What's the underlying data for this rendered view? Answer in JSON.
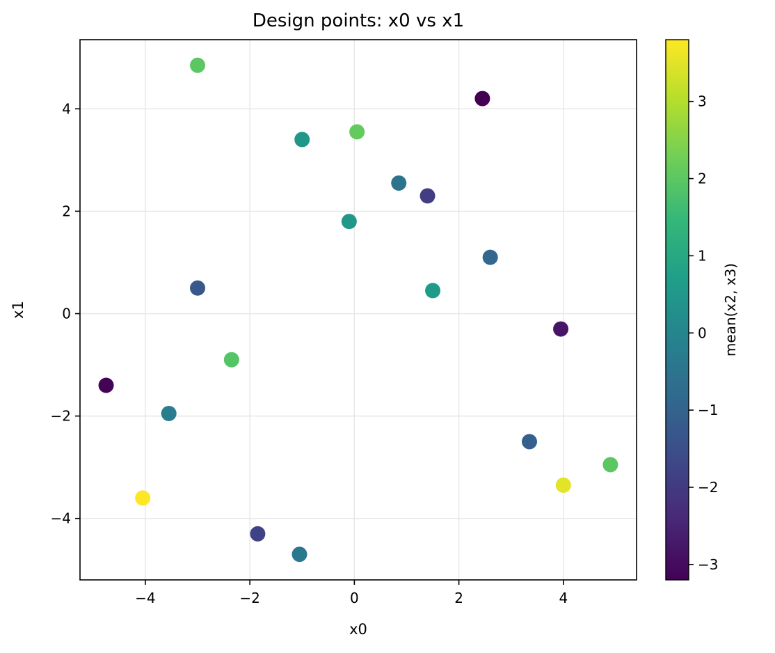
{
  "chart_data": {
    "type": "scatter",
    "title": "Design points: x0 vs x1",
    "xlabel": "x0",
    "ylabel": "x1",
    "xlim": [
      -5.25,
      5.4
    ],
    "ylim": [
      -5.2,
      5.35
    ],
    "xticks": [
      -4,
      -2,
      0,
      2,
      4
    ],
    "yticks": [
      -4,
      -2,
      0,
      2,
      4
    ],
    "grid": true,
    "legend": "none",
    "points": [
      {
        "x0": -3.0,
        "x1": 4.85,
        "mean_x2_x3": 2.0
      },
      {
        "x0": 2.45,
        "x1": 4.2,
        "mean_x2_x3": -3.2
      },
      {
        "x0": -1.0,
        "x1": 3.4,
        "mean_x2_x3": 0.5
      },
      {
        "x0": 0.05,
        "x1": 3.55,
        "mean_x2_x3": 2.1
      },
      {
        "x0": 0.85,
        "x1": 2.55,
        "mean_x2_x3": -0.5
      },
      {
        "x0": 1.4,
        "x1": 2.3,
        "mean_x2_x3": -1.9
      },
      {
        "x0": -0.1,
        "x1": 1.8,
        "mean_x2_x3": 0.5
      },
      {
        "x0": 2.6,
        "x1": 1.1,
        "mean_x2_x3": -0.9
      },
      {
        "x0": 1.5,
        "x1": 0.45,
        "mean_x2_x3": 0.6
      },
      {
        "x0": -3.0,
        "x1": 0.5,
        "mean_x2_x3": -1.3
      },
      {
        "x0": 3.95,
        "x1": -0.3,
        "mean_x2_x3": -2.8
      },
      {
        "x0": -2.35,
        "x1": -0.9,
        "mean_x2_x3": 1.9
      },
      {
        "x0": -4.75,
        "x1": -1.4,
        "mean_x2_x3": -3.15
      },
      {
        "x0": -3.55,
        "x1": -1.95,
        "mean_x2_x3": -0.2
      },
      {
        "x0": 3.35,
        "x1": -2.5,
        "mean_x2_x3": -1.1
      },
      {
        "x0": 4.9,
        "x1": -2.95,
        "mean_x2_x3": 2.0
      },
      {
        "x0": 4.0,
        "x1": -3.35,
        "mean_x2_x3": 3.5
      },
      {
        "x0": -4.05,
        "x1": -3.6,
        "mean_x2_x3": 3.8
      },
      {
        "x0": -1.85,
        "x1": -4.3,
        "mean_x2_x3": -1.8
      },
      {
        "x0": -1.05,
        "x1": -4.7,
        "mean_x2_x3": -0.4
      }
    ],
    "colorbar": {
      "label": "mean(x2, x3)",
      "vmin": -3.2,
      "vmax": 3.8,
      "ticks": [
        -3,
        -2,
        -1,
        0,
        1,
        2,
        3
      ],
      "colormap": "viridis",
      "colormap_stops": [
        "#440154",
        "#482878",
        "#3e4989",
        "#31688e",
        "#26828e",
        "#1f9e89",
        "#35b779",
        "#6ece58",
        "#b5de2b",
        "#fde725"
      ]
    },
    "colors": {
      "background": "#ffffff",
      "spine": "#000000",
      "grid": "#e6e6e6"
    }
  }
}
